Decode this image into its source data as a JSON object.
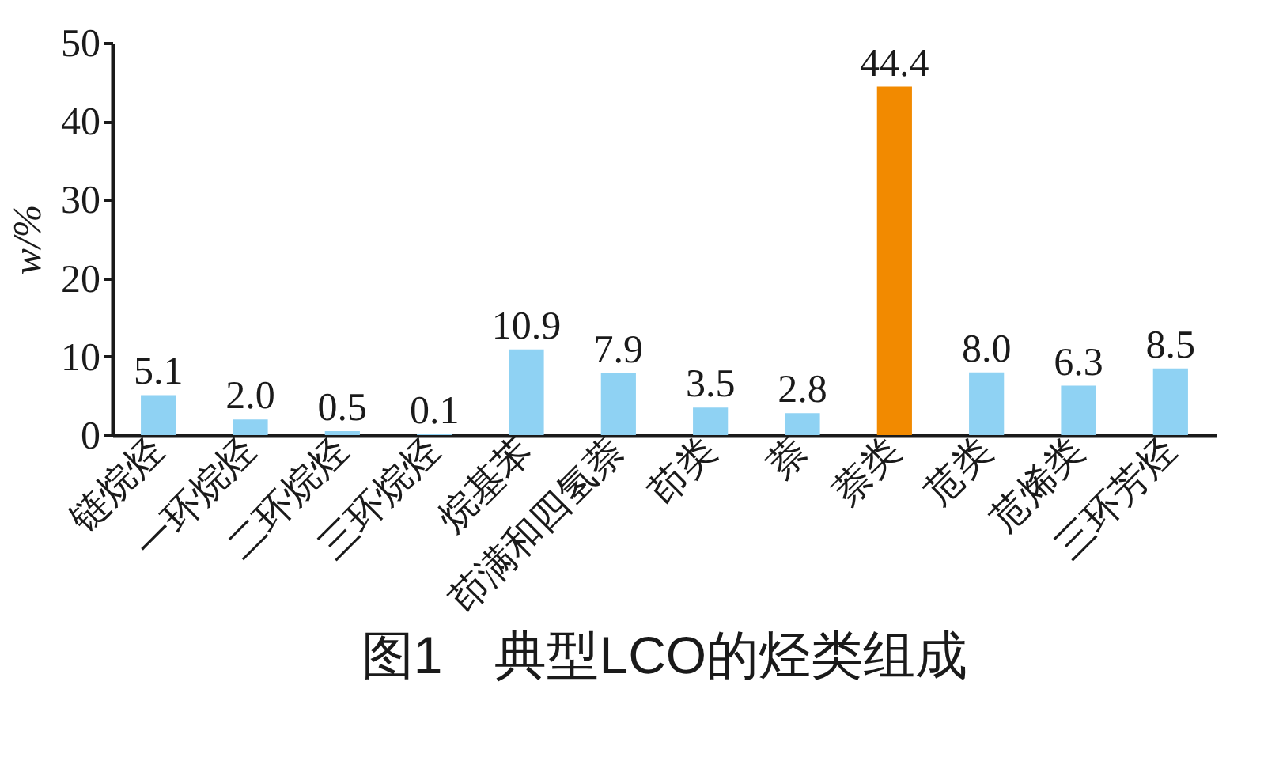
{
  "chart_data": {
    "type": "bar",
    "title": "图1　典型LCO的烃类组成",
    "ylabel": "w/%",
    "categories": [
      "链烷烃",
      "一环烷烃",
      "二环烷烃",
      "三环烷烃",
      "烷基苯",
      "茚满和四氢萘",
      "茚类",
      "萘",
      "萘类",
      "苊类",
      "苊烯类",
      "三环芳烃"
    ],
    "values": [
      5.1,
      2.0,
      0.5,
      0.1,
      10.9,
      7.9,
      3.5,
      2.8,
      44.4,
      8.0,
      6.3,
      8.5
    ],
    "value_labels": [
      "5.1",
      "2.0",
      "0.5",
      "0.1",
      "10.9",
      "7.9",
      "3.5",
      "2.8",
      "44.4",
      "8.0",
      "6.3",
      "8.5"
    ],
    "colors": [
      "#8fd2f3",
      "#8fd2f3",
      "#8fd2f3",
      "#8fd2f3",
      "#8fd2f3",
      "#8fd2f3",
      "#8fd2f3",
      "#8fd2f3",
      "#f28a00",
      "#8fd2f3",
      "#8fd2f3",
      "#8fd2f3"
    ],
    "ylim": [
      0,
      50
    ],
    "yticks": [
      0,
      10,
      20,
      30,
      40,
      50
    ]
  }
}
